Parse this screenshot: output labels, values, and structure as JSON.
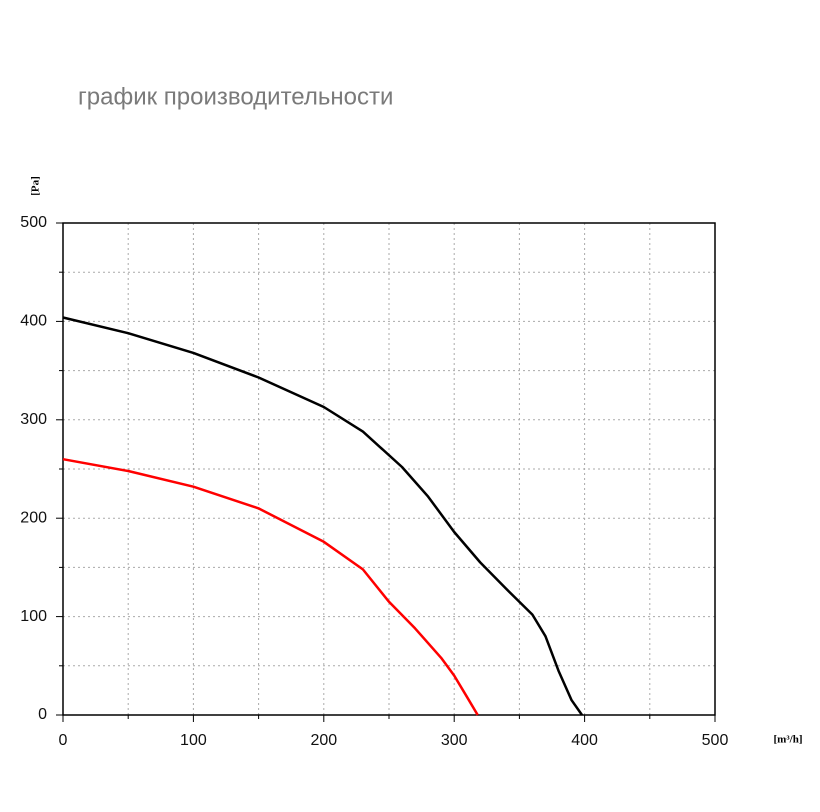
{
  "chart_data": {
    "type": "line",
    "title": "график производительности",
    "y_label": "[Pa]",
    "x_label": "[m³/h]",
    "xlim": [
      0,
      500
    ],
    "ylim": [
      0,
      500
    ],
    "xticks": [
      0,
      100,
      200,
      300,
      400,
      500
    ],
    "yticks": [
      0,
      100,
      200,
      300,
      400,
      500
    ],
    "xminor": [
      50,
      150,
      250,
      350,
      450
    ],
    "yminor": [
      50,
      150,
      250,
      350,
      450
    ],
    "grid": true,
    "series": [
      {
        "color": "#000000",
        "x": [
          0,
          50,
          100,
          150,
          200,
          230,
          260,
          280,
          300,
          320,
          340,
          360,
          370,
          380,
          390,
          398
        ],
        "values": [
          404,
          388,
          368,
          343,
          313,
          288,
          252,
          222,
          186,
          155,
          128,
          102,
          80,
          45,
          15,
          0
        ]
      },
      {
        "color": "#ff0000",
        "x": [
          0,
          50,
          100,
          150,
          200,
          230,
          250,
          270,
          290,
          300,
          310,
          318
        ],
        "values": [
          260,
          248,
          232,
          210,
          176,
          148,
          115,
          88,
          58,
          40,
          18,
          0
        ]
      }
    ]
  }
}
